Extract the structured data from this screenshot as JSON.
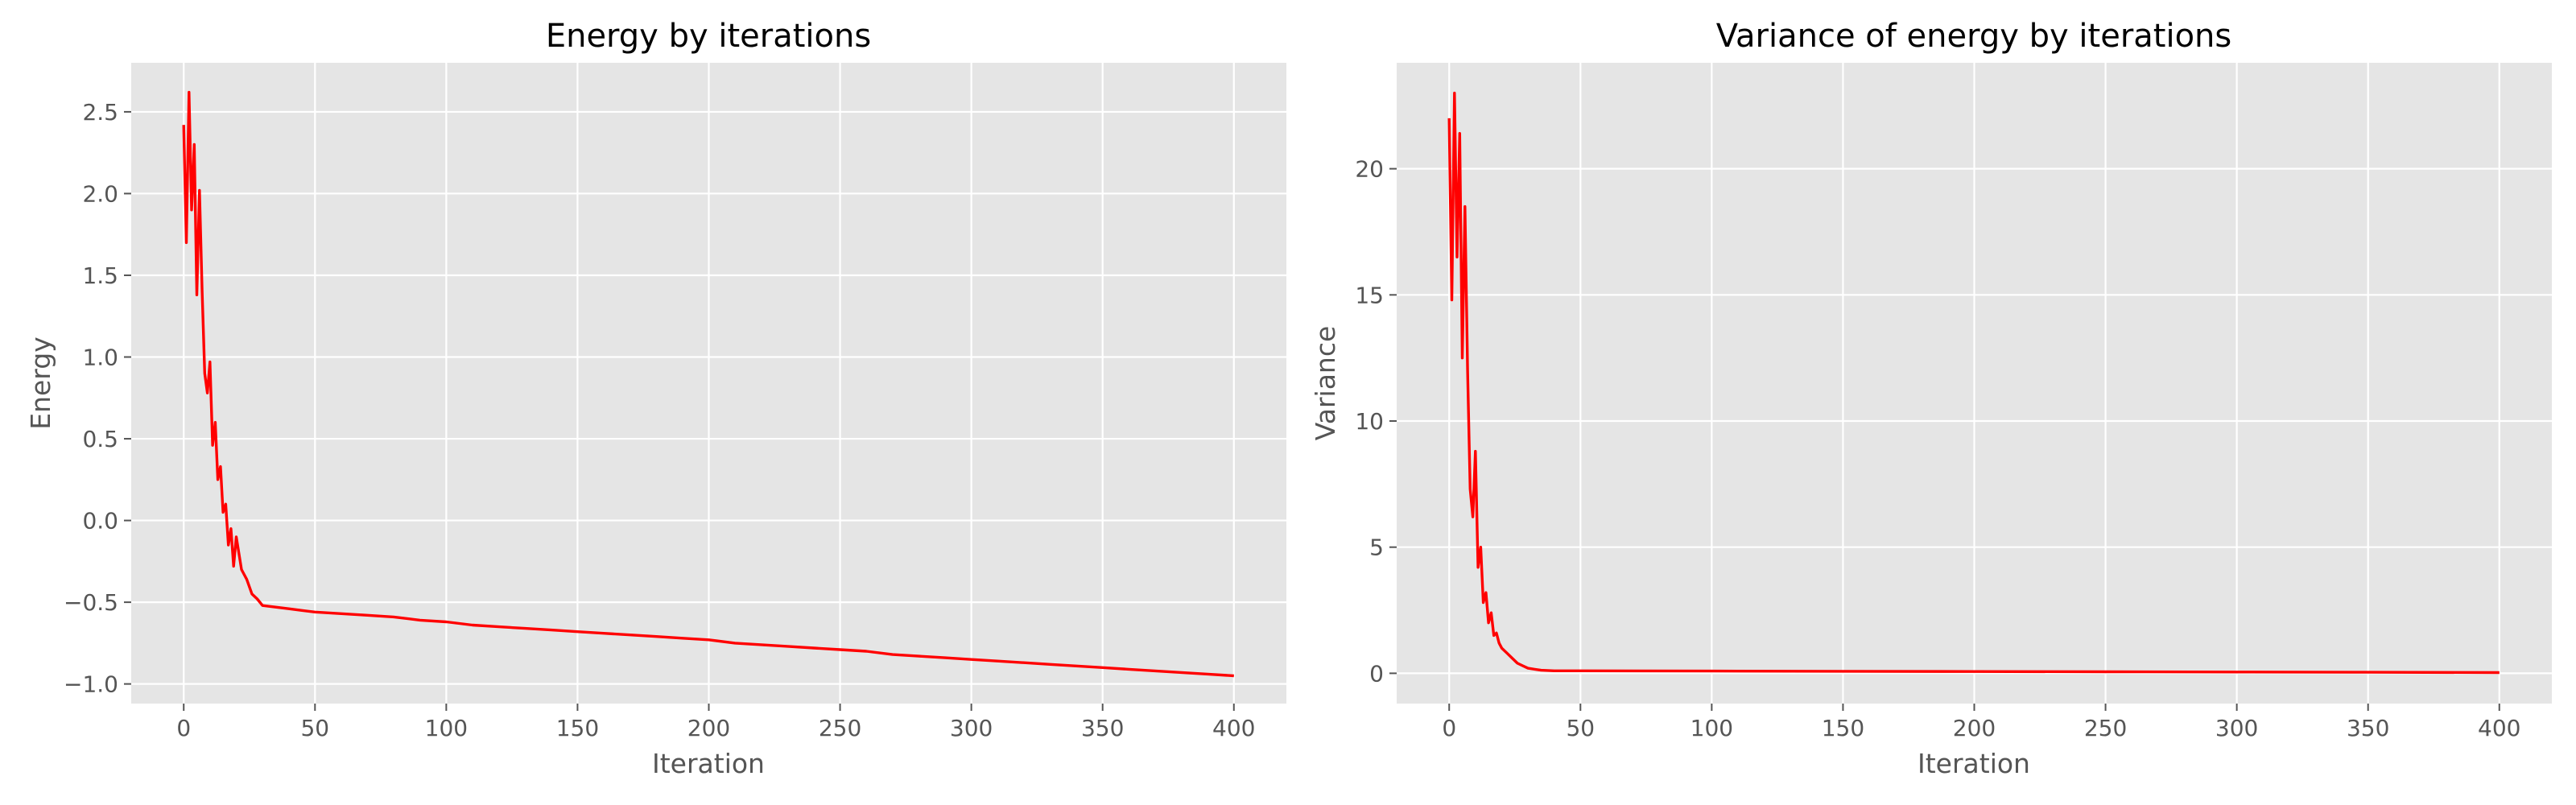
{
  "chart_data": [
    {
      "type": "line",
      "title": "Energy by iterations",
      "xlabel": "Iteration",
      "ylabel": "Energy",
      "xlim": [
        -20,
        420
      ],
      "ylim": [
        -1.12,
        2.8
      ],
      "xticks": [
        0,
        50,
        100,
        150,
        200,
        250,
        300,
        350,
        400
      ],
      "yticks": [
        -1.0,
        -0.5,
        0.0,
        0.5,
        1.0,
        1.5,
        2.0,
        2.5
      ],
      "ytick_labels": [
        "−1.0",
        "−0.5",
        "0.0",
        "0.5",
        "1.0",
        "1.5",
        "2.0",
        "2.5"
      ],
      "grid": true,
      "series": [
        {
          "color": "#ff0000",
          "x": [
            0,
            1,
            2,
            3,
            4,
            5,
            6,
            7,
            8,
            9,
            10,
            11,
            12,
            13,
            14,
            15,
            16,
            17,
            18,
            19,
            20,
            22,
            24,
            26,
            28,
            30,
            35,
            40,
            45,
            50,
            60,
            70,
            80,
            90,
            100,
            110,
            120,
            130,
            140,
            150,
            160,
            170,
            180,
            190,
            200,
            210,
            220,
            230,
            240,
            250,
            260,
            270,
            280,
            290,
            300,
            310,
            320,
            330,
            340,
            350,
            360,
            370,
            380,
            390,
            400
          ],
          "y": [
            2.42,
            1.7,
            2.62,
            1.9,
            2.3,
            1.38,
            2.02,
            1.4,
            0.9,
            0.78,
            0.97,
            0.46,
            0.6,
            0.25,
            0.33,
            0.05,
            0.1,
            -0.15,
            -0.05,
            -0.28,
            -0.1,
            -0.3,
            -0.36,
            -0.45,
            -0.48,
            -0.52,
            -0.53,
            -0.54,
            -0.55,
            -0.56,
            -0.57,
            -0.58,
            -0.59,
            -0.61,
            -0.62,
            -0.64,
            -0.65,
            -0.66,
            -0.67,
            -0.68,
            -0.69,
            -0.7,
            -0.71,
            -0.72,
            -0.73,
            -0.75,
            -0.76,
            -0.77,
            -0.78,
            -0.79,
            -0.8,
            -0.82,
            -0.83,
            -0.84,
            -0.85,
            -0.86,
            -0.87,
            -0.88,
            -0.89,
            -0.9,
            -0.91,
            -0.92,
            -0.93,
            -0.94,
            -0.95
          ]
        }
      ]
    },
    {
      "type": "line",
      "title": "Variance of energy by iterations",
      "xlabel": "Iteration",
      "ylabel": "Variance",
      "xlim": [
        -20,
        420
      ],
      "ylim": [
        -1.2,
        24.2
      ],
      "xticks": [
        0,
        50,
        100,
        150,
        200,
        250,
        300,
        350,
        400
      ],
      "yticks": [
        0,
        5,
        10,
        15,
        20
      ],
      "ytick_labels": [
        "0",
        "5",
        "10",
        "15",
        "20"
      ],
      "grid": true,
      "series": [
        {
          "color": "#ff0000",
          "x": [
            0,
            1,
            2,
            3,
            4,
            5,
            6,
            7,
            8,
            9,
            10,
            11,
            12,
            13,
            14,
            15,
            16,
            17,
            18,
            19,
            20,
            22,
            24,
            26,
            28,
            30,
            35,
            40,
            45,
            50,
            100,
            150,
            200,
            250,
            300,
            350,
            400
          ],
          "y": [
            22.0,
            14.8,
            23.0,
            16.5,
            21.4,
            12.5,
            18.5,
            12.0,
            7.3,
            6.2,
            8.8,
            4.2,
            5.0,
            2.8,
            3.2,
            2.0,
            2.4,
            1.5,
            1.6,
            1.2,
            1.0,
            0.8,
            0.6,
            0.4,
            0.3,
            0.2,
            0.12,
            0.1,
            0.1,
            0.1,
            0.09,
            0.08,
            0.07,
            0.06,
            0.05,
            0.04,
            0.03
          ]
        }
      ]
    }
  ]
}
